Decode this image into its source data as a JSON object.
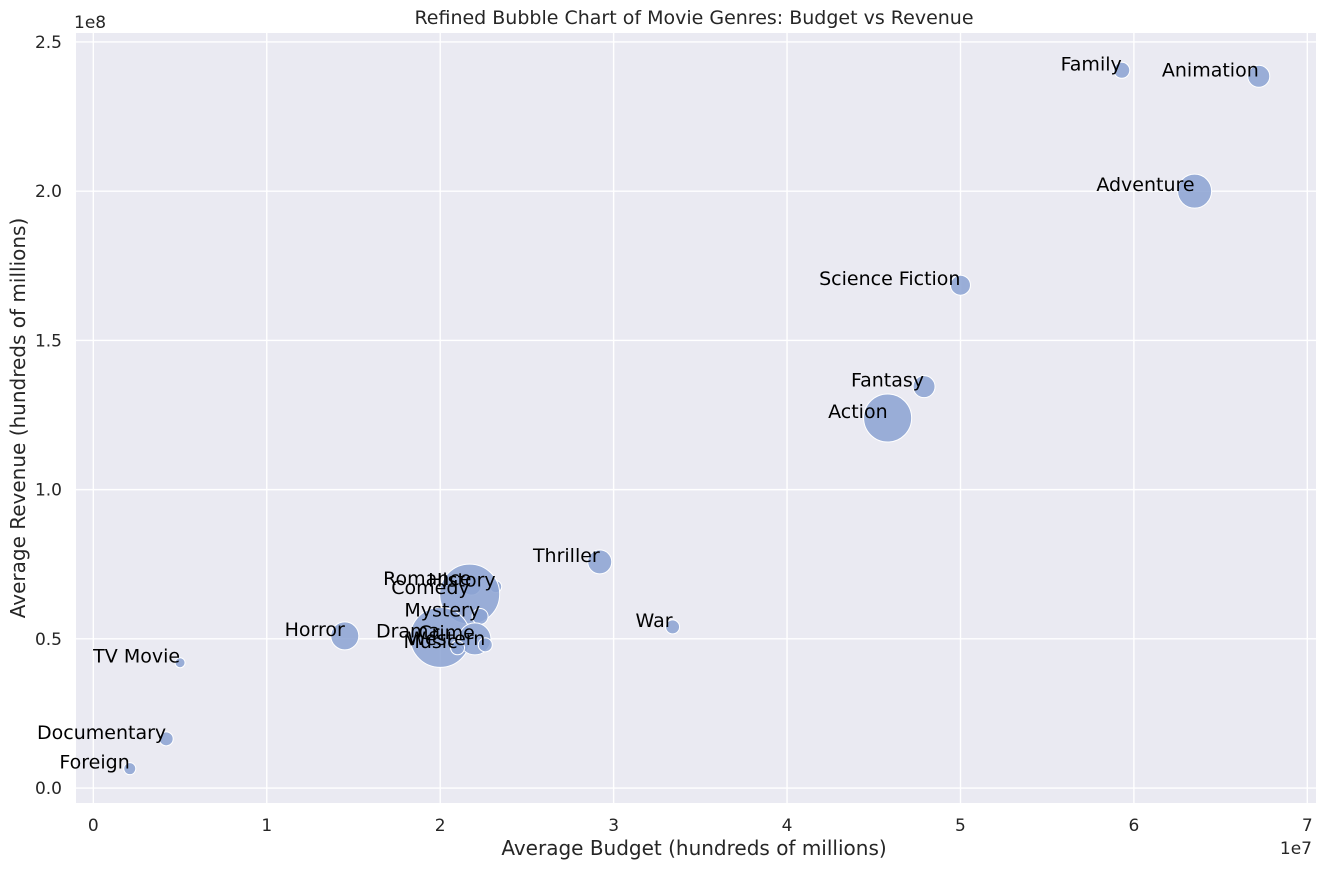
{
  "chart_data": {
    "type": "scatter",
    "title": "Refined Bubble Chart of Movie Genres: Budget vs Revenue",
    "xlabel": "Average Budget (hundreds of millions)",
    "ylabel": "Average Revenue (hundreds of millions)",
    "x_offset_label": "1e7",
    "y_offset_label": "1e8",
    "xlim": [
      -1000000,
      70500000
    ],
    "ylim": [
      -5000000,
      253000000
    ],
    "x_ticks": [
      0,
      10000000,
      20000000,
      30000000,
      40000000,
      50000000,
      60000000,
      70000000
    ],
    "x_tick_labels": [
      "0",
      "1",
      "2",
      "3",
      "4",
      "5",
      "6",
      "7"
    ],
    "y_ticks": [
      0,
      50000000,
      100000000,
      150000000,
      200000000,
      250000000
    ],
    "y_tick_labels": [
      "0.0",
      "0.5",
      "1.0",
      "1.5",
      "2.0",
      "2.5"
    ],
    "grid": true,
    "background_color": "#eaeaf2",
    "bubble_color": "#8ba2d2",
    "points": [
      {
        "label": "Family",
        "x": 59300000,
        "y": 240500000,
        "r": 8
      },
      {
        "label": "Animation",
        "x": 67200000,
        "y": 238500000,
        "r": 11
      },
      {
        "label": "Adventure",
        "x": 63500000,
        "y": 200000000,
        "r": 17
      },
      {
        "label": "Science Fiction",
        "x": 50000000,
        "y": 168500000,
        "r": 10
      },
      {
        "label": "Fantasy",
        "x": 47900000,
        "y": 134500000,
        "r": 11
      },
      {
        "label": "Action",
        "x": 45800000,
        "y": 124000000,
        "r": 24
      },
      {
        "label": "Thriller",
        "x": 29200000,
        "y": 75800000,
        "r": 12
      },
      {
        "label": "War",
        "x": 33400000,
        "y": 54000000,
        "r": 7
      },
      {
        "label": "Romance",
        "x": 21800000,
        "y": 68000000,
        "r": 10
      },
      {
        "label": "History",
        "x": 23200000,
        "y": 67500000,
        "r": 6
      },
      {
        "label": "Comedy",
        "x": 21700000,
        "y": 65000000,
        "r": 30
      },
      {
        "label": "Mystery",
        "x": 22300000,
        "y": 57500000,
        "r": 8
      },
      {
        "label": "Horror",
        "x": 14500000,
        "y": 51000000,
        "r": 14
      },
      {
        "label": "Drama",
        "x": 20000000,
        "y": 50500000,
        "r": 30
      },
      {
        "label": "Crime",
        "x": 22000000,
        "y": 50000000,
        "r": 16
      },
      {
        "label": "Western",
        "x": 22600000,
        "y": 48000000,
        "r": 7
      },
      {
        "label": "Music",
        "x": 21000000,
        "y": 47000000,
        "r": 7
      },
      {
        "label": "TV Movie",
        "x": 5000000,
        "y": 42000000,
        "r": 5
      },
      {
        "label": "Documentary",
        "x": 4200000,
        "y": 16500000,
        "r": 7
      },
      {
        "label": "Foreign",
        "x": 2100000,
        "y": 6500000,
        "r": 6
      }
    ]
  }
}
